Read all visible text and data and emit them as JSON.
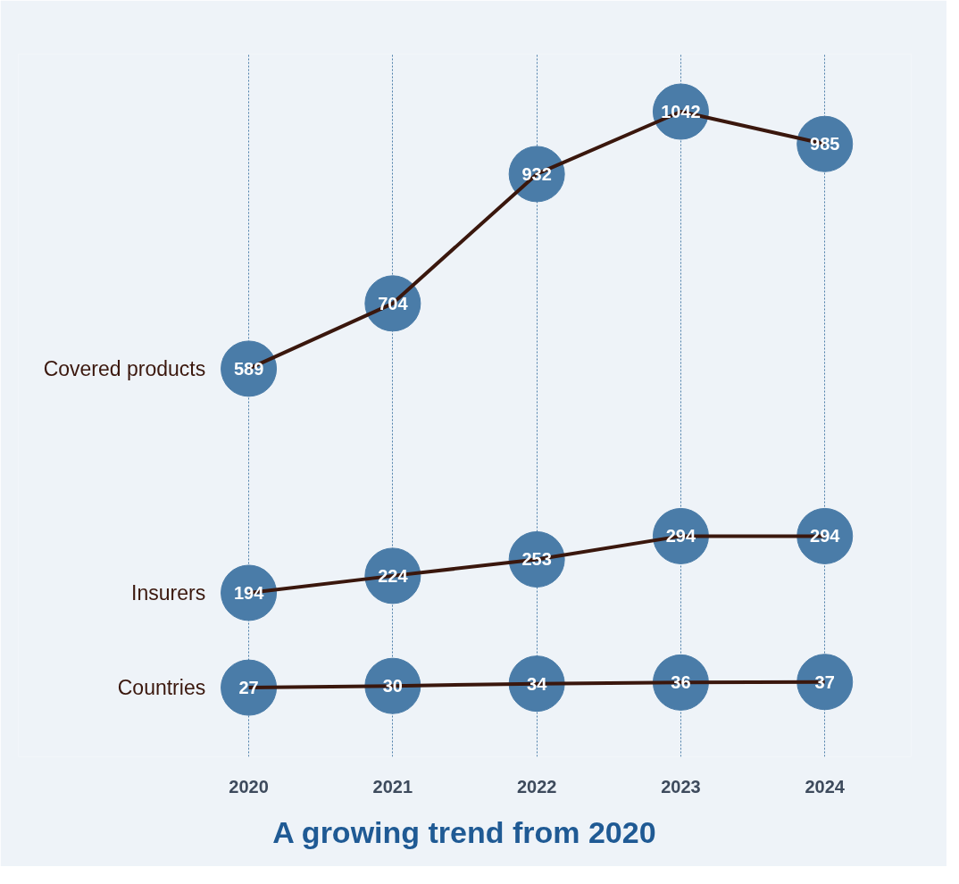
{
  "chart_data": {
    "type": "line",
    "title": "A growing trend from 2020",
    "categories": [
      "2020",
      "2021",
      "2022",
      "2023",
      "2024"
    ],
    "series": [
      {
        "name": "Covered products",
        "color": "#3a170d",
        "values": [
          589,
          704,
          932,
          1042,
          985
        ]
      },
      {
        "name": "Insurers",
        "color": "#3a170d",
        "values": [
          194,
          224,
          253,
          294,
          294
        ]
      },
      {
        "name": "Countries",
        "color": "#3a170d",
        "values": [
          27,
          30,
          34,
          36,
          37
        ]
      }
    ],
    "tick_labels": "x",
    "data_labels": true,
    "line_style": "solid",
    "grid": "x"
  }
}
